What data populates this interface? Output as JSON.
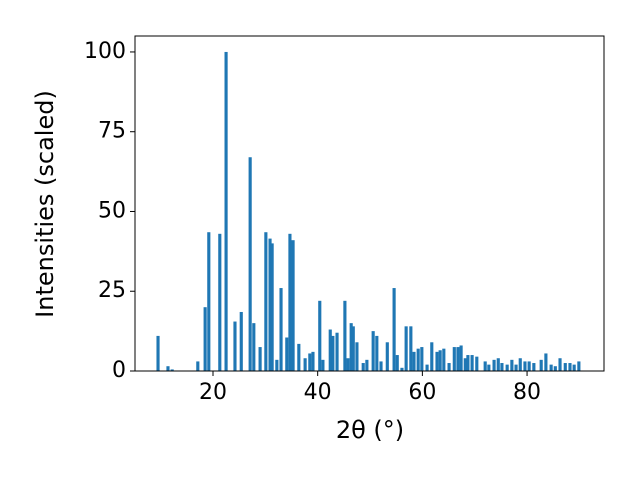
{
  "chart_data": {
    "type": "bar",
    "x_label": "2θ (°)",
    "y_label": "Intensities (scaled)",
    "color": "#1f77b4",
    "x": [
      9.5,
      11.4,
      12.2,
      17.1,
      18.5,
      19.2,
      21.3,
      22.5,
      24.2,
      25.4,
      27.1,
      27.8,
      29.0,
      30.1,
      30.9,
      31.3,
      32.2,
      33.0,
      34.1,
      34.7,
      35.3,
      36.4,
      37.6,
      38.5,
      39.1,
      40.4,
      41.0,
      42.4,
      42.9,
      43.7,
      45.2,
      45.8,
      46.4,
      46.8,
      47.5,
      48.7,
      49.4,
      50.6,
      51.3,
      52.1,
      53.3,
      54.6,
      55.2,
      56.1,
      56.9,
      57.8,
      58.4,
      59.2,
      59.9,
      60.9,
      61.8,
      62.8,
      63.4,
      64.1,
      65.1,
      66.1,
      66.8,
      67.4,
      68.2,
      68.7,
      69.5,
      70.4,
      72.0,
      72.7,
      73.7,
      74.5,
      75.2,
      76.2,
      77.1,
      77.9,
      78.7,
      79.6,
      80.4,
      81.3,
      82.7,
      83.6,
      84.6,
      85.4,
      86.3,
      87.3,
      88.2,
      89.0,
      89.9
    ],
    "values": [
      11,
      1.5,
      0.5,
      3,
      20,
      43.5,
      43,
      100,
      15.5,
      18.5,
      67,
      15,
      7.5,
      43.5,
      41.5,
      40,
      3.5,
      26,
      10.5,
      43,
      41,
      8.5,
      4,
      5.5,
      6,
      22,
      3.5,
      13,
      11,
      12,
      22,
      4,
      15,
      14,
      9,
      2.5,
      3.5,
      12.5,
      11,
      3,
      9,
      26,
      5,
      1,
      14,
      14,
      6,
      7,
      7.5,
      2,
      9,
      6,
      6.5,
      7,
      2.5,
      7.5,
      7.5,
      8,
      4,
      5,
      5,
      4.5,
      3,
      2,
      3.5,
      4,
      2.5,
      2,
      3.5,
      2,
      4,
      3,
      3,
      2.5,
      3.5,
      5.5,
      2,
      1.5,
      4,
      2.5,
      2.5,
      2,
      3
    ],
    "xlim": [
      5.1,
      94.7
    ],
    "ylim": [
      0,
      105
    ],
    "xticks": [
      20,
      40,
      60,
      80
    ],
    "yticks": [
      0,
      25,
      50,
      75,
      100
    ],
    "grid": false
  }
}
